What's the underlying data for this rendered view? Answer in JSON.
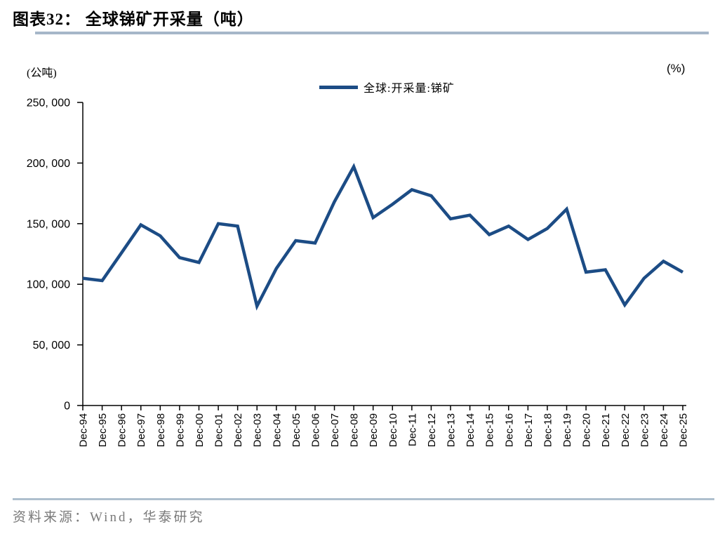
{
  "header": {
    "title": "图表32：  全球锑矿开采量（吨）"
  },
  "chart": {
    "left_unit": "(公吨)",
    "right_unit": "(%)",
    "legend": "全球:开采量:锑矿",
    "line_color": "#1c4c85",
    "axis_color": "#000000",
    "title_rule_color": "#a6b7c9",
    "footer_rule_color": "#aebfce"
  },
  "footer": {
    "source": "资料来源：Wind，华泰研究"
  },
  "chart_data": {
    "type": "line",
    "title": "全球锑矿开采量（吨）",
    "ylabel": "(公吨)",
    "xlabel": "",
    "legend_position": "top-center",
    "grid": false,
    "ylim": [
      0,
      250000
    ],
    "ytick_step": 50000,
    "ytick_labels": [
      "0",
      "50, 000",
      "100, 000",
      "150, 000",
      "200, 000",
      "250, 000"
    ],
    "categories": [
      "Dec-94",
      "Dec-95",
      "Dec-96",
      "Dec-97",
      "Dec-98",
      "Dec-99",
      "Dec-00",
      "Dec-01",
      "Dec-02",
      "Dec-03",
      "Dec-04",
      "Dec-05",
      "Dec-06",
      "Dec-07",
      "Dec-08",
      "Dec-09",
      "Dec-10",
      "Dec-11",
      "Dec-12",
      "Dec-13",
      "Dec-14",
      "Dec-15",
      "Dec-16",
      "Dec-17",
      "Dec-18",
      "Dec-19",
      "Dec-20",
      "Dec-21",
      "Dec-22",
      "Dec-23",
      "Dec-24",
      "Dec-25"
    ],
    "series": [
      {
        "name": "全球:开采量:锑矿",
        "values": [
          105000,
          103000,
          126000,
          149000,
          140000,
          122000,
          118000,
          150000,
          148000,
          82000,
          113000,
          136000,
          134000,
          168000,
          197000,
          155000,
          166000,
          178000,
          173000,
          154000,
          157000,
          141000,
          148000,
          137000,
          146000,
          162000,
          110000,
          112000,
          83000,
          105000,
          119000,
          110000
        ]
      }
    ]
  }
}
